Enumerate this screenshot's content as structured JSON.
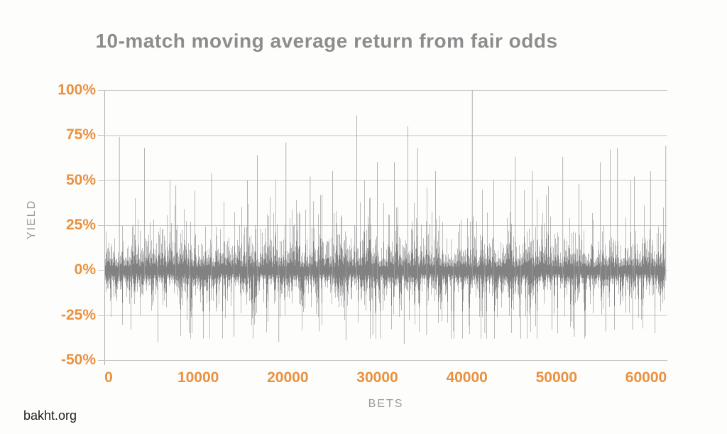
{
  "page": {
    "watermark": "bakht.org",
    "background": "#fdfdfc"
  },
  "chart_data": {
    "type": "line",
    "title": "10-match moving average return from fair odds",
    "xlabel": "BETS",
    "ylabel": "YIELD",
    "x_ticks": [
      0,
      10000,
      20000,
      30000,
      40000,
      50000,
      60000
    ],
    "x_tick_labels": [
      "0",
      "10000",
      "20000",
      "30000",
      "40000",
      "50000",
      "60000"
    ],
    "y_ticks": [
      100,
      75,
      50,
      25,
      0,
      -25,
      -50
    ],
    "y_tick_labels": [
      "100%",
      "75%",
      "50%",
      "25%",
      "0%",
      "-25%",
      "-50%"
    ],
    "xlim": [
      0,
      62300
    ],
    "ylim": [
      -50,
      100
    ],
    "grid": "horizontal",
    "legend": "none",
    "series_description": "Single gray series: 10-match moving-average yield, dense noise oscillating around 0% (core band roughly -18% to +15%), frequent excursions to about +45% / -35%, occasional tall positive spikes listed in peaks.",
    "baseline": 0,
    "noise": {
      "seed": 1337,
      "columns": 790,
      "up_base": 4,
      "up_exp_mean": 10.5,
      "up_max": 50,
      "down_base": 3.5,
      "down_exp_mean": 8.5,
      "down_max": 38,
      "core_up_frac": 0.42,
      "core_down_frac": 0.6
    },
    "peaks": [
      [
        1200,
        74
      ],
      [
        4000,
        68
      ],
      [
        7500,
        47
      ],
      [
        11500,
        54
      ],
      [
        15500,
        50
      ],
      [
        16600,
        64
      ],
      [
        19800,
        71
      ],
      [
        22500,
        52
      ],
      [
        25000,
        55
      ],
      [
        27700,
        86
      ],
      [
        30000,
        60
      ],
      [
        31900,
        60
      ],
      [
        33400,
        80
      ],
      [
        34500,
        68
      ],
      [
        36500,
        55
      ],
      [
        40600,
        100
      ],
      [
        43000,
        50
      ],
      [
        45400,
        63
      ],
      [
        47300,
        55
      ],
      [
        50700,
        63
      ],
      [
        52500,
        48
      ],
      [
        54900,
        60
      ],
      [
        56000,
        67
      ],
      [
        56800,
        68
      ],
      [
        58700,
        52
      ],
      [
        60500,
        55
      ],
      [
        62200,
        69
      ]
    ],
    "troughs": [
      [
        2500,
        -33
      ],
      [
        5500,
        -40
      ],
      [
        9000,
        -35
      ],
      [
        14000,
        -37
      ],
      [
        19000,
        -40
      ],
      [
        23500,
        -34
      ],
      [
        26500,
        -39
      ],
      [
        29500,
        -36
      ],
      [
        33000,
        -41
      ],
      [
        35500,
        -36
      ],
      [
        38500,
        -34
      ],
      [
        42000,
        -35
      ],
      [
        46000,
        -38
      ],
      [
        49500,
        -33
      ],
      [
        52000,
        -37
      ],
      [
        55500,
        -34
      ],
      [
        58500,
        -33
      ],
      [
        61000,
        -35
      ]
    ],
    "colors": {
      "tick_label": "#e9913f",
      "title": "#8d8d8d",
      "axis_title": "#9b9b9b",
      "gridline": "#c9c9c9",
      "axis_line": "#b2b2b2",
      "series_outer": "#9a9a9a",
      "series_core": "#737373",
      "spike": "#a2a2a2"
    }
  }
}
